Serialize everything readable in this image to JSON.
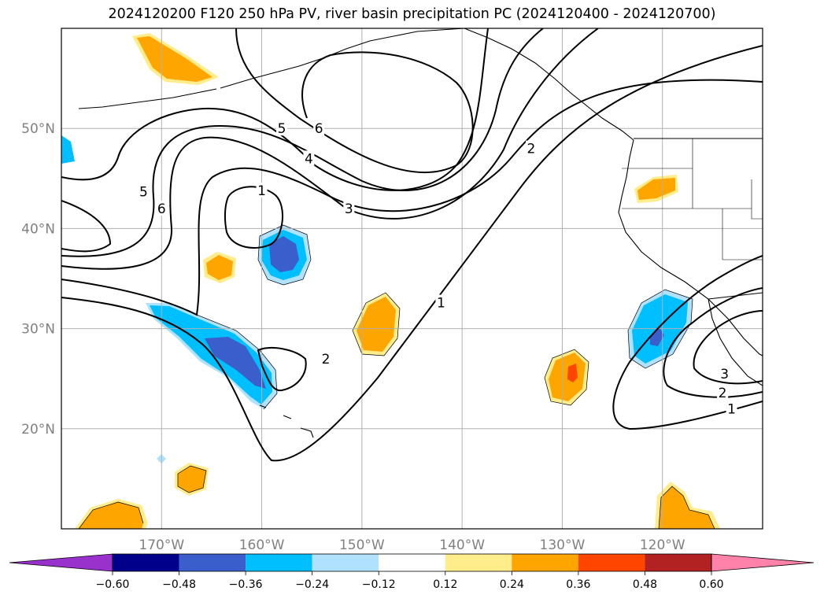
{
  "title": "2024120200 F120 250 hPa PV, river basin precipitation PC (2024120400 - 2024120700)",
  "map": {
    "lon_range": [
      -180,
      -110
    ],
    "lat_range": [
      10,
      60
    ],
    "lat_ticks": [
      {
        "value": 50,
        "label": "50°N"
      },
      {
        "value": 40,
        "label": "40°N"
      },
      {
        "value": 30,
        "label": "30°N"
      },
      {
        "value": 20,
        "label": "20°N"
      }
    ],
    "lon_ticks": [
      {
        "value": -170,
        "label": "170°W"
      },
      {
        "value": -160,
        "label": "160°W"
      },
      {
        "value": -150,
        "label": "150°W"
      },
      {
        "value": -140,
        "label": "140°W"
      },
      {
        "value": -130,
        "label": "130°W"
      },
      {
        "value": -120,
        "label": "120°W"
      }
    ],
    "gridlines": true,
    "pv_contour_labels": [
      {
        "text": "5",
        "lon": -171.8,
        "lat": 43.7
      },
      {
        "text": "6",
        "lon": -170.0,
        "lat": 42.0
      },
      {
        "text": "5",
        "lon": -158.0,
        "lat": 50.0
      },
      {
        "text": "6",
        "lon": -154.3,
        "lat": 50.0
      },
      {
        "text": "4",
        "lon": -155.3,
        "lat": 47.0
      },
      {
        "text": "3",
        "lon": -151.3,
        "lat": 42.0
      },
      {
        "text": "1",
        "lon": -160.0,
        "lat": 43.8
      },
      {
        "text": "2",
        "lon": -153.6,
        "lat": 27.0
      },
      {
        "text": "1",
        "lon": -142.1,
        "lat": 32.6
      },
      {
        "text": "2",
        "lon": -133.1,
        "lat": 48.0
      },
      {
        "text": "3",
        "lon": -113.8,
        "lat": 25.5
      },
      {
        "text": "2",
        "lon": -114.0,
        "lat": 23.6
      },
      {
        "text": "1",
        "lon": -113.1,
        "lat": 22.0
      }
    ],
    "colors": {
      "purple": "#9932cc",
      "navy": "#00008b",
      "royal": "#3a5fcd",
      "deepsky": "#00bfff",
      "lightsky": "#b0e2ff",
      "white": "#ffffff",
      "lightyellow": "#ffec8b",
      "orange": "#ffa500",
      "orangered": "#ff4500",
      "firebrick": "#b22222",
      "pink": "#ff82ab"
    }
  },
  "colorbar": {
    "ticks": [
      "−0.60",
      "−0.48",
      "−0.36",
      "−0.24",
      "−0.12",
      "0.12",
      "0.24",
      "0.36",
      "0.48",
      "0.60"
    ],
    "colors": [
      "#9932cc",
      "#00008b",
      "#3a5fcd",
      "#00bfff",
      "#b0e2ff",
      "#ffffff",
      "#ffec8b",
      "#ffa500",
      "#ff4500",
      "#b22222",
      "#ff82ab"
    ]
  }
}
